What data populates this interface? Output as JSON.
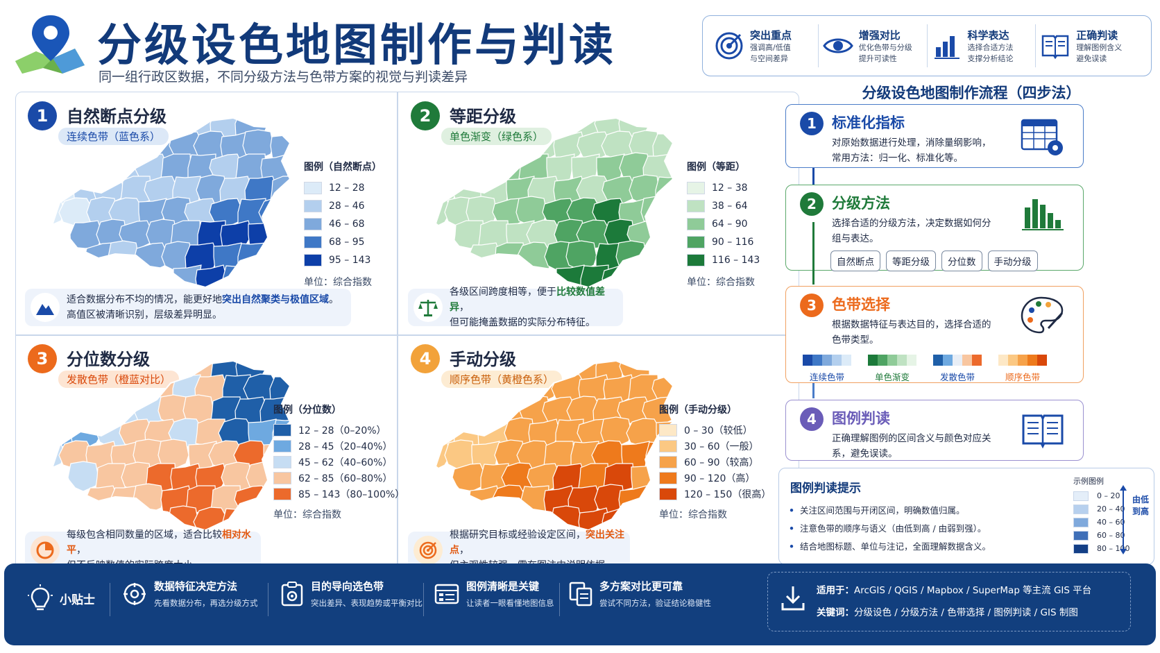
{
  "header": {
    "title": "分级设色地图制作与判读",
    "subtitle": "同一组行政区数据，不同分级方法与色带方案的视觉与判读差异"
  },
  "features": [
    {
      "title": "突出重点",
      "desc1": "强调高/低值",
      "desc2": "与空间差异",
      "icon": "target-icon"
    },
    {
      "title": "增强对比",
      "desc1": "优化色带与分级",
      "desc2": "提升可读性",
      "icon": "eye-icon"
    },
    {
      "title": "科学表达",
      "desc1": "选择合适方法",
      "desc2": "支撑分析结论",
      "icon": "bar-chart-icon"
    },
    {
      "title": "正确判读",
      "desc1": "理解图例含义",
      "desc2": "避免误读",
      "icon": "book-icon"
    }
  ],
  "panels": [
    {
      "num": "1",
      "title": "自然断点分级",
      "tag": "连续色带（蓝色系）",
      "legend_title": "图例（自然断点）",
      "legend": [
        "12 – 28",
        "28 – 46",
        "46 – 68",
        "68 – 95",
        "95 – 143"
      ],
      "colors": [
        "#dcebf8",
        "#b3cfee",
        "#7fa9dc",
        "#3f78c6",
        "#0d3fa8"
      ],
      "unit": "单位：综合指数",
      "note_pre": "适合数据分布不均的情况，能更好地",
      "note_hl": "突出自然聚类与极值区域",
      "note_post": "。",
      "note_line2": "高值区被清晰识别，层级差异明显。"
    },
    {
      "num": "2",
      "title": "等距分级",
      "tag": "单色渐变（绿色系）",
      "legend_title": "图例（等距）",
      "legend": [
        "12 – 38",
        "38 – 64",
        "64 – 90",
        "90 – 116",
        "116 – 143"
      ],
      "colors": [
        "#e6f4e6",
        "#bfe2c2",
        "#8fcb98",
        "#4fa463",
        "#1c7a3a"
      ],
      "unit": "单位：综合指数",
      "note_pre": "各级区间跨度相等，便于",
      "note_hl": "比较数值差异",
      "note_post": "，",
      "note_line2": "但可能掩盖数据的实际分布特征。"
    },
    {
      "num": "3",
      "title": "分位数分级",
      "tag": "发散色带（橙蓝对比）",
      "legend_title": "图例（分位数）",
      "legend": [
        "12 – 28（0–20%）",
        "28 – 45（20–40%）",
        "45 – 62（40–60%）",
        "62 – 85（60–80%）",
        "85 – 143（80–100%）"
      ],
      "colors": [
        "#1f5fa8",
        "#6ea9e0",
        "#c6ddf3",
        "#f8c6a0",
        "#ec6a2c"
      ],
      "unit": "单位：综合指数",
      "note_pre": "每级包含相同数量的区域，适合比较",
      "note_hl": "相对水平",
      "note_post": "，",
      "note_line2": "但不反映数值的实际跨度大小。"
    },
    {
      "num": "4",
      "title": "手动分级",
      "tag": "顺序色带（黄橙色系）",
      "legend_title": "图例（手动分级）",
      "legend": [
        "0 – 30（较低）",
        "30 – 60（一般）",
        "60 – 90（较高）",
        "90 – 120（高）",
        "120 – 150（很高）"
      ],
      "colors": [
        "#fde8c6",
        "#fbc883",
        "#f6a24a",
        "#ee7a1c",
        "#d9480a"
      ],
      "unit": "单位：综合指数",
      "note_pre": "根据研究目标或经验设定区间，",
      "note_hl": "突出关注点",
      "note_post": "，",
      "note_line2": "但主观性较强，需在图注中说明依据。"
    }
  ],
  "process": {
    "title": "分级设色地图制作流程（四步法）",
    "steps": [
      {
        "num": "1",
        "title": "标准化指标",
        "desc": "对原始数据进行处理，消除量纲影响，常用方法：归一化、标准化等。"
      },
      {
        "num": "2",
        "title": "分级方法",
        "desc": "选择合适的分级方法，决定数据如何分组与表达。",
        "chips": [
          "自然断点",
          "等距分级",
          "分位数",
          "手动分级"
        ]
      },
      {
        "num": "3",
        "title": "色带选择",
        "desc": "根据数据特征与表达目的，选择合适的色带类型。",
        "ramps": [
          "连续色带",
          "单色渐变",
          "发散色带",
          "顺序色带"
        ]
      },
      {
        "num": "4",
        "title": "图例判读",
        "desc": "正确理解图例的区间含义与颜色对应关系，避免误读。"
      }
    ]
  },
  "tips": {
    "title": "图例判读提示",
    "items": [
      "关注区间范围与开闭区间，明确数值归属。",
      "注意色带的顺序与语义（由低到高 / 由弱到强）。",
      "结合地图标题、单位与注记，全面理解数据含义。"
    ],
    "example_title": "示例图例",
    "example": [
      "0 – 20",
      "20 – 40",
      "40 – 60",
      "60 – 80",
      "80 – 100"
    ],
    "example_colors": [
      "#e4eef9",
      "#b7d0ee",
      "#7fa9dc",
      "#3f6fb8",
      "#133f86"
    ],
    "direction": "由低到高"
  },
  "footer": {
    "tips_label": "小贴士",
    "items": [
      {
        "title": "数据特征决定方法",
        "desc": "先看数据分布，再选分级方式"
      },
      {
        "title": "目的导向选色带",
        "desc": "突出差异、表现趋势或平衡对比"
      },
      {
        "title": "图例清晰是关键",
        "desc": "让读者一眼看懂地图信息"
      },
      {
        "title": "多方案对比更可靠",
        "desc": "尝试不同方法，验证结论稳健性"
      }
    ],
    "apply_label": "适用于：",
    "apply_text": "ArcGIS / QGIS / Mapbox / SuperMap 等主流 GIS 平台",
    "keywords_label": "关键词：",
    "keywords_text": "分级设色 / 分级方法 / 色带选择 / 图例判读 / GIS 制图"
  },
  "colors": {
    "blue": "#1a4aa8",
    "green": "#1f7a3a",
    "orange": "#ec6a1c",
    "amber": "#f2a23a",
    "purple": "#6a5cb8",
    "navy": "#123f7e"
  }
}
